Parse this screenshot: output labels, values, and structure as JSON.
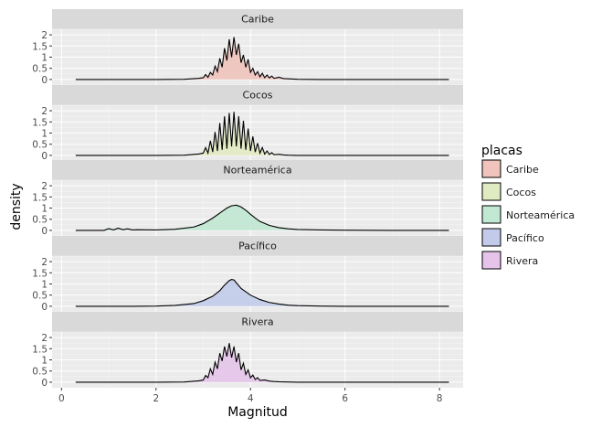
{
  "chart_data": {
    "type": "density",
    "xlabel": "Magnitud",
    "ylabel": "density",
    "xlim": [
      -0.2,
      8.5
    ],
    "ylim": [
      -0.25,
      2.25
    ],
    "x_ticks": [
      "0",
      "2",
      "4",
      "6",
      "8"
    ],
    "x_tick_values": [
      0,
      2,
      4,
      6,
      8
    ],
    "y_ticks": [
      "0",
      "0.5",
      "1",
      "1.5",
      "2"
    ],
    "y_tick_values": [
      0,
      0.5,
      1,
      1.5,
      2
    ],
    "legend": {
      "title": "placas",
      "position": "right"
    },
    "grid": true,
    "colors": {
      "panel_bg": "#ebebeb",
      "strip_bg": "#d9d9d9",
      "grid_major": "#ffffff",
      "line": "#000000"
    },
    "series": [
      {
        "name": "Caribe",
        "color": "#f0c3bd",
        "x": [
          0.3,
          1.0,
          2.0,
          2.6,
          2.9,
          3.0,
          3.05,
          3.1,
          3.15,
          3.2,
          3.25,
          3.3,
          3.35,
          3.4,
          3.45,
          3.5,
          3.55,
          3.6,
          3.65,
          3.7,
          3.75,
          3.8,
          3.85,
          3.9,
          3.95,
          4.0,
          4.05,
          4.1,
          4.15,
          4.2,
          4.25,
          4.3,
          4.35,
          4.4,
          4.45,
          4.5,
          4.6,
          4.7,
          4.8,
          5.0,
          5.5,
          6.5,
          8.2
        ],
        "y": [
          0.0,
          0.0,
          0.0,
          0.01,
          0.05,
          0.08,
          0.22,
          0.1,
          0.32,
          0.2,
          0.6,
          0.35,
          0.95,
          0.55,
          1.4,
          0.85,
          1.8,
          1.0,
          1.9,
          1.1,
          1.6,
          0.75,
          1.1,
          0.55,
          0.9,
          0.32,
          0.5,
          0.2,
          0.35,
          0.12,
          0.28,
          0.08,
          0.2,
          0.07,
          0.15,
          0.05,
          0.1,
          0.04,
          0.03,
          0.01,
          0.0,
          0.0,
          0.0
        ]
      },
      {
        "name": "Cocos",
        "color": "#e1ebc2",
        "x": [
          0.3,
          1.0,
          2.0,
          2.6,
          2.9,
          3.0,
          3.05,
          3.1,
          3.15,
          3.2,
          3.25,
          3.3,
          3.35,
          3.4,
          3.45,
          3.5,
          3.55,
          3.6,
          3.65,
          3.7,
          3.75,
          3.8,
          3.85,
          3.9,
          3.95,
          4.0,
          4.05,
          4.1,
          4.15,
          4.2,
          4.25,
          4.3,
          4.35,
          4.4,
          4.45,
          4.5,
          4.6,
          4.7,
          4.8,
          5.0,
          5.5,
          6.5,
          8.2
        ],
        "y": [
          0.0,
          0.0,
          0.0,
          0.01,
          0.06,
          0.1,
          0.35,
          0.1,
          0.65,
          0.15,
          1.05,
          0.2,
          1.45,
          0.25,
          1.75,
          0.3,
          1.9,
          0.4,
          1.95,
          0.4,
          1.75,
          0.3,
          1.55,
          0.25,
          1.2,
          0.2,
          0.85,
          0.15,
          0.55,
          0.1,
          0.35,
          0.06,
          0.2,
          0.04,
          0.12,
          0.03,
          0.05,
          0.02,
          0.01,
          0.0,
          0.0,
          0.0,
          0.0
        ]
      },
      {
        "name": "Norteamérica",
        "color": "#c1e8d3",
        "x": [
          0.3,
          0.9,
          1.0,
          1.1,
          1.2,
          1.3,
          1.4,
          1.5,
          1.6,
          2.0,
          2.4,
          2.8,
          3.0,
          3.2,
          3.4,
          3.5,
          3.6,
          3.7,
          3.8,
          3.9,
          4.0,
          4.1,
          4.2,
          4.4,
          4.6,
          4.8,
          5.0,
          5.5,
          6.0,
          7.0,
          8.2
        ],
        "y": [
          0.0,
          0.0,
          0.08,
          0.02,
          0.1,
          0.03,
          0.07,
          0.02,
          0.03,
          0.02,
          0.05,
          0.15,
          0.3,
          0.55,
          0.85,
          1.0,
          1.1,
          1.13,
          1.05,
          0.9,
          0.72,
          0.55,
          0.4,
          0.22,
          0.12,
          0.07,
          0.04,
          0.02,
          0.01,
          0.0,
          0.0
        ]
      },
      {
        "name": "Pacífico",
        "color": "#c2ccea",
        "x": [
          0.3,
          1.5,
          2.0,
          2.4,
          2.8,
          3.0,
          3.2,
          3.35,
          3.45,
          3.55,
          3.6,
          3.65,
          3.7,
          3.8,
          3.9,
          4.0,
          4.2,
          4.4,
          4.6,
          4.8,
          5.0,
          5.5,
          6.0,
          7.0,
          8.2
        ],
        "y": [
          0.0,
          0.0,
          0.01,
          0.04,
          0.12,
          0.25,
          0.45,
          0.7,
          0.95,
          1.15,
          1.2,
          1.18,
          1.05,
          0.8,
          0.65,
          0.5,
          0.3,
          0.17,
          0.1,
          0.05,
          0.03,
          0.01,
          0.0,
          0.0,
          0.0
        ]
      },
      {
        "name": "Rivera",
        "color": "#e6c4ea",
        "x": [
          0.3,
          1.0,
          2.0,
          2.6,
          2.9,
          3.0,
          3.05,
          3.1,
          3.15,
          3.2,
          3.25,
          3.3,
          3.35,
          3.4,
          3.45,
          3.5,
          3.55,
          3.6,
          3.65,
          3.7,
          3.75,
          3.8,
          3.85,
          3.9,
          3.95,
          4.0,
          4.05,
          4.1,
          4.15,
          4.2,
          4.3,
          4.4,
          4.5,
          4.6,
          4.8,
          5.0,
          5.5,
          6.5,
          8.2
        ],
        "y": [
          0.0,
          0.0,
          0.0,
          0.01,
          0.06,
          0.1,
          0.3,
          0.2,
          0.6,
          0.35,
          0.9,
          0.6,
          1.3,
          0.95,
          1.6,
          1.15,
          1.75,
          1.1,
          1.6,
          0.9,
          1.3,
          0.55,
          0.85,
          0.35,
          0.55,
          0.2,
          0.32,
          0.12,
          0.2,
          0.08,
          0.1,
          0.05,
          0.03,
          0.02,
          0.01,
          0.0,
          0.0,
          0.0,
          0.0
        ]
      }
    ]
  }
}
